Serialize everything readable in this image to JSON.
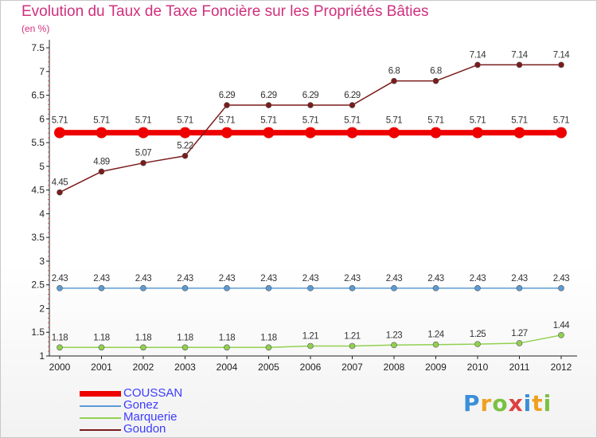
{
  "chart_data": {
    "type": "line",
    "title": "Evolution du Taux de Taxe Foncière sur les Propriétés Bâties",
    "ylabel": "(en %)",
    "xlabel": "",
    "ylim": [
      1,
      7.5
    ],
    "yticks": [
      "1",
      "1.5",
      "2",
      "2.5",
      "3",
      "3.5",
      "4",
      "4.5",
      "5",
      "5.5",
      "6",
      "6.5",
      "7",
      "7.5"
    ],
    "categories": [
      "2000",
      "2001",
      "2002",
      "2003",
      "2004",
      "2005",
      "2006",
      "2007",
      "2008",
      "2009",
      "2010",
      "2011",
      "2012"
    ],
    "series": [
      {
        "name": "COUSSAN",
        "color": "#ee0000",
        "values": [
          5.71,
          5.71,
          5.71,
          5.71,
          5.71,
          5.71,
          5.71,
          5.71,
          5.71,
          5.71,
          5.71,
          5.71,
          5.71
        ],
        "labels": [
          "5.71",
          "5.71",
          "5.71",
          "5.71",
          "5.71",
          "5.71",
          "5.71",
          "5.71",
          "5.71",
          "5.71",
          "5.71",
          "5.71",
          "5.71"
        ]
      },
      {
        "name": "Gonez",
        "color": "#5b9bd5",
        "values": [
          2.43,
          2.43,
          2.43,
          2.43,
          2.43,
          2.43,
          2.43,
          2.43,
          2.43,
          2.43,
          2.43,
          2.43,
          2.43
        ],
        "labels": [
          "2.43",
          "2.43",
          "2.43",
          "2.43",
          "2.43",
          "2.43",
          "2.43",
          "2.43",
          "2.43",
          "2.43",
          "2.43",
          "2.43",
          "2.43"
        ]
      },
      {
        "name": "Marquerie",
        "color": "#92d050",
        "values": [
          1.18,
          1.18,
          1.18,
          1.18,
          1.18,
          1.18,
          1.21,
          1.21,
          1.23,
          1.24,
          1.25,
          1.27,
          1.44
        ],
        "labels": [
          "1.18",
          "1.18",
          "1.18",
          "1.18",
          "1.18",
          "1.18",
          "1.21",
          "1.21",
          "1.23",
          "1.24",
          "1.25",
          "1.27",
          "1.44"
        ]
      },
      {
        "name": "Goudon",
        "color": "#7b1b1b",
        "values": [
          4.45,
          4.89,
          5.07,
          5.22,
          6.29,
          6.29,
          6.29,
          6.29,
          6.8,
          6.8,
          7.14,
          7.14,
          7.14
        ],
        "labels": [
          "4.45",
          "4.89",
          "5.07",
          "5.22",
          "6.29",
          "6.29",
          "6.29",
          "6.29",
          "6.8",
          "6.8",
          "7.14",
          "7.14",
          "7.14"
        ]
      }
    ],
    "legend_position": "bottom-left",
    "grid": false
  },
  "logo": {
    "letters": [
      {
        "char": "P",
        "color": "#3a8fd8"
      },
      {
        "char": "r",
        "color": "#f0a020"
      },
      {
        "char": "o",
        "color": "#7ac043"
      },
      {
        "char": "x",
        "color": "#e04040"
      },
      {
        "char": "i",
        "color": "#3a8fd8"
      },
      {
        "char": "t",
        "color": "#f0a020"
      },
      {
        "char": "i",
        "color": "#7ac043"
      }
    ]
  }
}
